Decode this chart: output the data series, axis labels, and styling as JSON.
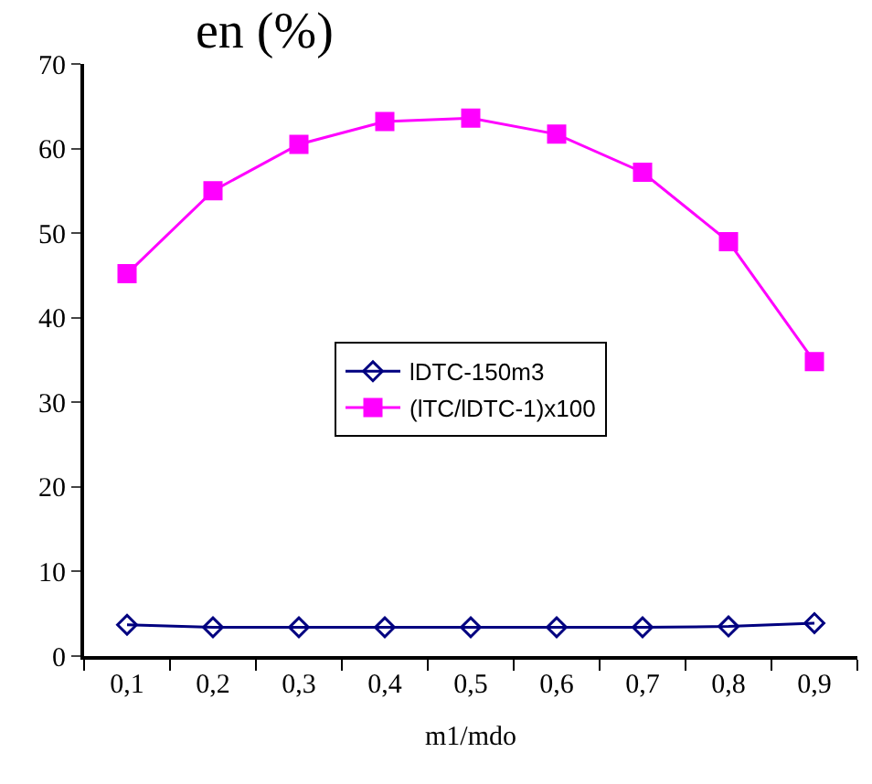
{
  "chart_data": {
    "type": "line",
    "ylabel": "en (%)",
    "xlabel": "m1/mdo",
    "categories": [
      "0,1",
      "0,2",
      "0,3",
      "0,4",
      "0,5",
      "0,6",
      "0,7",
      "0,8",
      "0,9"
    ],
    "series": [
      {
        "name": "lDTC-150m3",
        "color": "#000080",
        "marker": "diamond",
        "values": [
          3.7,
          3.4,
          3.4,
          3.4,
          3.4,
          3.4,
          3.4,
          3.5,
          3.9
        ]
      },
      {
        "name": "(lTC/lDTC-1)x100",
        "color": "#ff00ff",
        "marker": "square",
        "values": [
          45.2,
          55.0,
          60.5,
          63.2,
          63.6,
          61.7,
          57.2,
          49.0,
          34.8
        ]
      }
    ],
    "ylim": [
      0,
      70
    ],
    "yticks": [
      0,
      10,
      20,
      30,
      40,
      50,
      60,
      70
    ],
    "legend": "center",
    "line_style": "solid"
  }
}
